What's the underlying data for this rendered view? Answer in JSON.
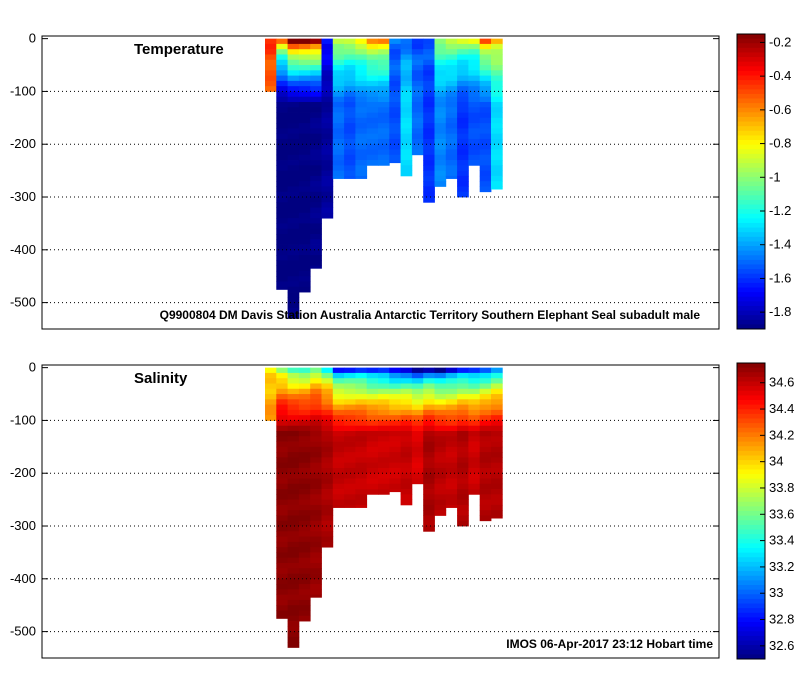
{
  "chart_data": [
    {
      "type": "heatmap",
      "title": "Temperature",
      "caption": "Q9900804 DM Davis Station Australia Antarctic Territory Southern Elephant Seal subadult male",
      "xlabel": "",
      "ylabel": "",
      "ylim": [
        -550,
        5
      ],
      "y_ticks": [
        0,
        -100,
        -200,
        -300,
        -400,
        -500
      ],
      "y_tick_labels": [
        "0",
        "-100",
        "-200",
        "-300",
        "-400",
        "-500"
      ],
      "grid": "dotted horizontal",
      "colorbar": {
        "range": [
          -1.9,
          -0.15
        ],
        "ticks": [
          -0.2,
          -0.4,
          -0.6,
          -0.8,
          -1,
          -1.2,
          -1.4,
          -1.6,
          -1.8
        ],
        "tick_labels": [
          "-0.2",
          "-0.4",
          "-0.6",
          "-0.8",
          "-1",
          "-1.2",
          "-1.4",
          "-1.6",
          "-1.8"
        ]
      },
      "profiles": [
        {
          "max_depth": 100,
          "surface": -0.45,
          "deep": -0.55
        },
        {
          "max_depth": 475,
          "surface": -0.6,
          "deep": -1.9
        },
        {
          "max_depth": 530,
          "surface": -0.15,
          "deep": -1.9
        },
        {
          "max_depth": 480,
          "surface": -0.15,
          "deep": -1.9
        },
        {
          "max_depth": 435,
          "surface": -0.2,
          "deep": -1.88
        },
        {
          "max_depth": 340,
          "surface": -1.6,
          "deep": -1.85
        },
        {
          "max_depth": 265,
          "surface": -0.85,
          "deep": -1.5
        },
        {
          "max_depth": 265,
          "surface": -0.85,
          "deep": -1.55
        },
        {
          "max_depth": 265,
          "surface": -0.8,
          "deep": -1.5
        },
        {
          "max_depth": 240,
          "surface": -0.65,
          "deep": -1.5
        },
        {
          "max_depth": 240,
          "surface": -0.65,
          "deep": -1.5
        },
        {
          "max_depth": 235,
          "surface": -1.5,
          "deep": -1.55
        },
        {
          "max_depth": 260,
          "surface": -1.5,
          "deep": -1.3
        },
        {
          "max_depth": 220,
          "surface": -1.55,
          "deep": -1.5
        },
        {
          "max_depth": 310,
          "surface": -1.5,
          "deep": -1.6
        },
        {
          "max_depth": 280,
          "surface": -0.95,
          "deep": -1.45
        },
        {
          "max_depth": 265,
          "surface": -0.9,
          "deep": -1.5
        },
        {
          "max_depth": 300,
          "surface": -0.9,
          "deep": -1.6
        },
        {
          "max_depth": 240,
          "surface": -0.9,
          "deep": -1.55
        },
        {
          "max_depth": 290,
          "surface": -0.55,
          "deep": -1.55
        },
        {
          "max_depth": 285,
          "surface": -0.7,
          "deep": -1.3
        }
      ]
    },
    {
      "type": "heatmap",
      "title": "Salinity",
      "caption": "IMOS 06-Apr-2017 23:12 Hobart time",
      "xlabel": "",
      "ylabel": "",
      "ylim": [
        -550,
        5
      ],
      "y_ticks": [
        0,
        -100,
        -200,
        -300,
        -400,
        -500
      ],
      "y_tick_labels": [
        "0",
        "-100",
        "-200",
        "-300",
        "-400",
        "-500"
      ],
      "grid": "dotted horizontal",
      "colorbar": {
        "range": [
          32.5,
          34.75
        ],
        "ticks": [
          34.6,
          34.4,
          34.2,
          34,
          33.8,
          33.6,
          33.4,
          33.2,
          33,
          32.8,
          32.6
        ],
        "tick_labels": [
          "34.6",
          "34.4",
          "34.2",
          "34",
          "33.8",
          "33.6",
          "33.4",
          "33.2",
          "33",
          "32.8",
          "32.6"
        ]
      },
      "profiles": [
        {
          "max_depth": 100,
          "surface": 33.9,
          "deep": 34.2
        },
        {
          "max_depth": 475,
          "surface": 33.6,
          "deep": 34.72
        },
        {
          "max_depth": 530,
          "surface": 33.4,
          "deep": 34.73
        },
        {
          "max_depth": 480,
          "surface": 33.4,
          "deep": 34.72
        },
        {
          "max_depth": 435,
          "surface": 33.6,
          "deep": 34.7
        },
        {
          "max_depth": 340,
          "surface": 33.4,
          "deep": 34.66
        },
        {
          "max_depth": 265,
          "surface": 32.9,
          "deep": 34.6
        },
        {
          "max_depth": 265,
          "surface": 32.9,
          "deep": 34.6
        },
        {
          "max_depth": 265,
          "surface": 32.9,
          "deep": 34.6
        },
        {
          "max_depth": 240,
          "surface": 32.8,
          "deep": 34.58
        },
        {
          "max_depth": 240,
          "surface": 32.8,
          "deep": 34.58
        },
        {
          "max_depth": 235,
          "surface": 32.7,
          "deep": 34.58
        },
        {
          "max_depth": 260,
          "surface": 32.7,
          "deep": 34.6
        },
        {
          "max_depth": 220,
          "surface": 32.6,
          "deep": 34.55
        },
        {
          "max_depth": 310,
          "surface": 32.7,
          "deep": 34.66
        },
        {
          "max_depth": 280,
          "surface": 32.6,
          "deep": 34.62
        },
        {
          "max_depth": 265,
          "surface": 32.7,
          "deep": 34.6
        },
        {
          "max_depth": 300,
          "surface": 32.8,
          "deep": 34.64
        },
        {
          "max_depth": 240,
          "surface": 32.8,
          "deep": 34.58
        },
        {
          "max_depth": 290,
          "surface": 32.9,
          "deep": 34.64
        },
        {
          "max_depth": 285,
          "surface": 33.1,
          "deep": 34.64
        }
      ]
    }
  ]
}
